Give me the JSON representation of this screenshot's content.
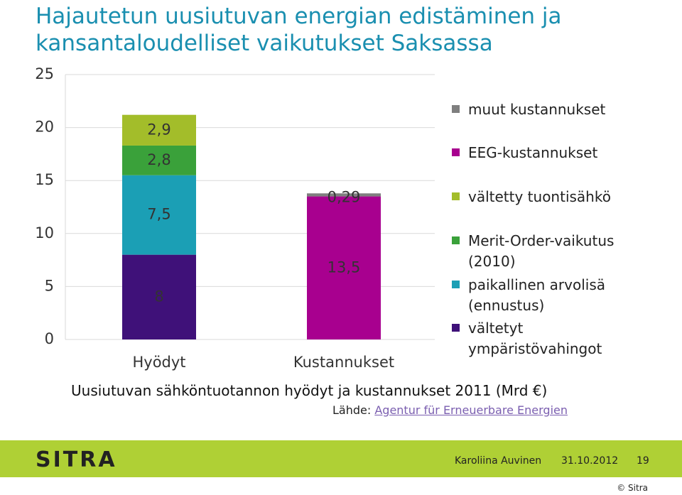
{
  "title": "Hajautetun uusiutuvan energian edistäminen ja kansantaloudelliset vaikutukset Saksassa",
  "chart_data": {
    "type": "stacked_bar",
    "title": "Uusiutuvan sähköntuotannon hyödyt ja kustannukset 2011 (Mrd €)",
    "categories": [
      "Hyödyt",
      "Kustannukset"
    ],
    "series": [
      {
        "name": "vältetyt ympäristövahingot",
        "color": "#3f1179",
        "values": [
          8,
          null
        ],
        "value_labels": [
          "8",
          null
        ]
      },
      {
        "name": "paikallinen arvolisä (ennustus)",
        "color": "#1b9fb5",
        "values": [
          7.5,
          null
        ],
        "value_labels": [
          "7,5",
          null
        ]
      },
      {
        "name": "Merit-Order-vaikutus (2010)",
        "color": "#3aa13a",
        "values": [
          2.8,
          null
        ],
        "value_labels": [
          "2,8",
          null
        ]
      },
      {
        "name": "vältetty tuontisähkö",
        "color": "#a3bd2a",
        "values": [
          2.9,
          null
        ],
        "value_labels": [
          "2,9",
          null
        ]
      },
      {
        "name": "EEG-kustannukset",
        "color": "#a8008f",
        "values": [
          null,
          13.5
        ],
        "value_labels": [
          null,
          "13,5"
        ]
      },
      {
        "name": "muut kustannukset",
        "color": "#7f7f7f",
        "values": [
          null,
          0.29
        ],
        "value_labels": [
          null,
          "0,29"
        ]
      }
    ],
    "ylim": [
      0,
      25
    ],
    "yticks": [
      0,
      5,
      10,
      15,
      20,
      25
    ],
    "grid": true,
    "legend": "right"
  },
  "source": {
    "prefix": "Lähde:",
    "link": "Agentur für Erneuerbare Energien"
  },
  "footer": {
    "logo": "SITRA",
    "author": "Karoliina Auvinen",
    "date": "31.10.2012",
    "page": "19",
    "copyright": "© Sitra"
  }
}
